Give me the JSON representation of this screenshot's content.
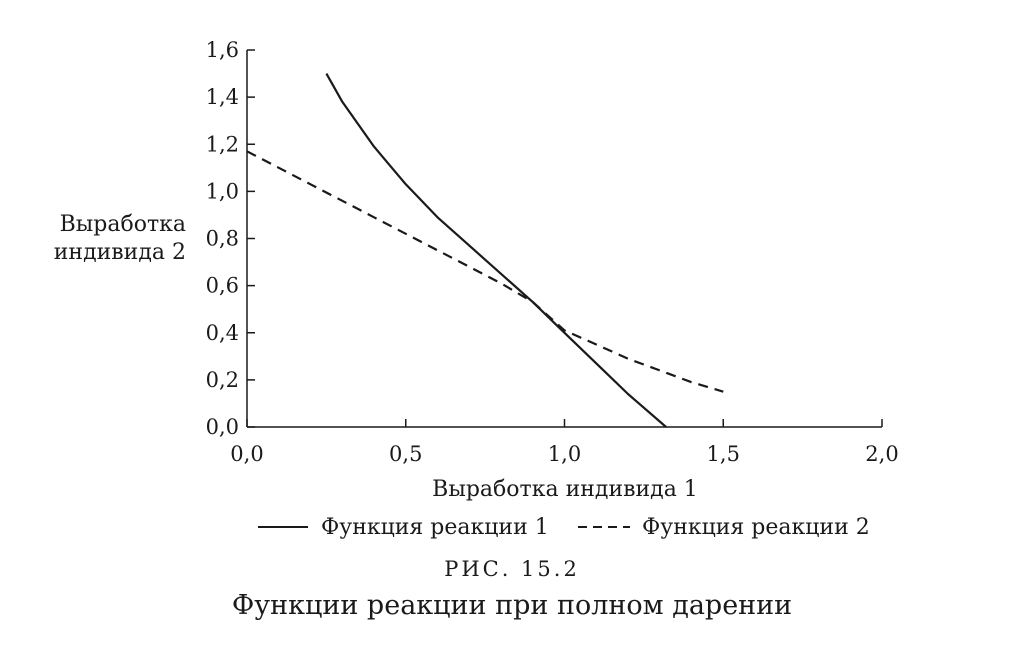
{
  "chart_data": {
    "type": "line",
    "xlabel": "Выработка индивида 1",
    "ylabel_lines": [
      "Выработка",
      "индивида 2"
    ],
    "xlim": [
      0,
      2
    ],
    "ylim": [
      0,
      1.6
    ],
    "x_ticks": [
      "0,0",
      "0,5",
      "1,0",
      "1,5",
      "2,0"
    ],
    "y_ticks": [
      "0,0",
      "0,2",
      "0,4",
      "0,6",
      "0,8",
      "1,0",
      "1,2",
      "1,4",
      "1,6"
    ],
    "x_tick_values": [
      0,
      0.5,
      1.0,
      1.5,
      2.0
    ],
    "y_tick_values": [
      0,
      0.2,
      0.4,
      0.6,
      0.8,
      1.0,
      1.2,
      1.4,
      1.6
    ],
    "grid": false,
    "legend_position": "bottom",
    "series": [
      {
        "name": "Функция реакции 1",
        "style": "solid",
        "x": [
          0.25,
          0.3,
          0.4,
          0.5,
          0.6,
          0.7,
          0.8,
          0.9,
          1.0,
          1.1,
          1.2,
          1.32
        ],
        "y": [
          1.5,
          1.38,
          1.19,
          1.03,
          0.89,
          0.77,
          0.65,
          0.53,
          0.4,
          0.27,
          0.14,
          0.0
        ]
      },
      {
        "name": "Функция реакции 2",
        "style": "dashed",
        "x": [
          0.0,
          0.1,
          0.2,
          0.3,
          0.4,
          0.5,
          0.6,
          0.7,
          0.8,
          0.9,
          1.0,
          1.1,
          1.2,
          1.3,
          1.4,
          1.5
        ],
        "y": [
          1.17,
          1.1,
          1.03,
          0.96,
          0.89,
          0.82,
          0.75,
          0.68,
          0.61,
          0.53,
          0.41,
          0.35,
          0.29,
          0.24,
          0.19,
          0.15
        ]
      }
    ]
  },
  "figure": {
    "number": "РИС. 15.2",
    "caption": "Функции реакции при полном дарении"
  }
}
